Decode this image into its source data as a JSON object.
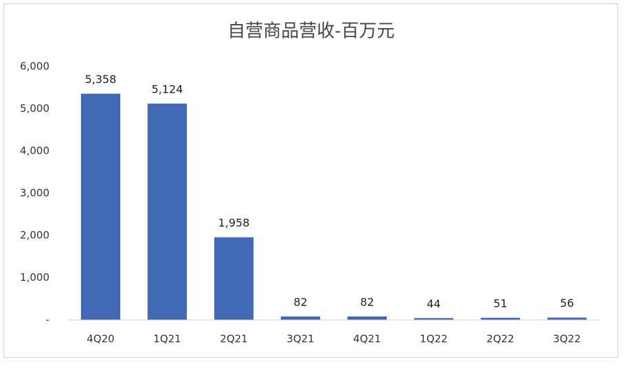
{
  "chart_data": {
    "type": "bar",
    "title": "自营商品营收-百万元",
    "categories": [
      "4Q20",
      "1Q21",
      "2Q21",
      "3Q21",
      "4Q21",
      "1Q22",
      "2Q22",
      "3Q22"
    ],
    "values": [
      5358,
      5124,
      1958,
      82,
      82,
      44,
      51,
      56
    ],
    "value_labels": [
      "5,358",
      "5,124",
      "1,958",
      "82",
      "82",
      "44",
      "51",
      "56"
    ],
    "color": "#4169b5",
    "ylim": [
      0,
      6000
    ],
    "yticks": [
      {
        "value": 0,
        "label": "-"
      },
      {
        "value": 1000,
        "label": "1,000"
      },
      {
        "value": 2000,
        "label": "2,000"
      },
      {
        "value": 3000,
        "label": "3,000"
      },
      {
        "value": 4000,
        "label": "4,000"
      },
      {
        "value": 5000,
        "label": "5,000"
      },
      {
        "value": 6000,
        "label": "6,000"
      }
    ],
    "grid": false
  }
}
